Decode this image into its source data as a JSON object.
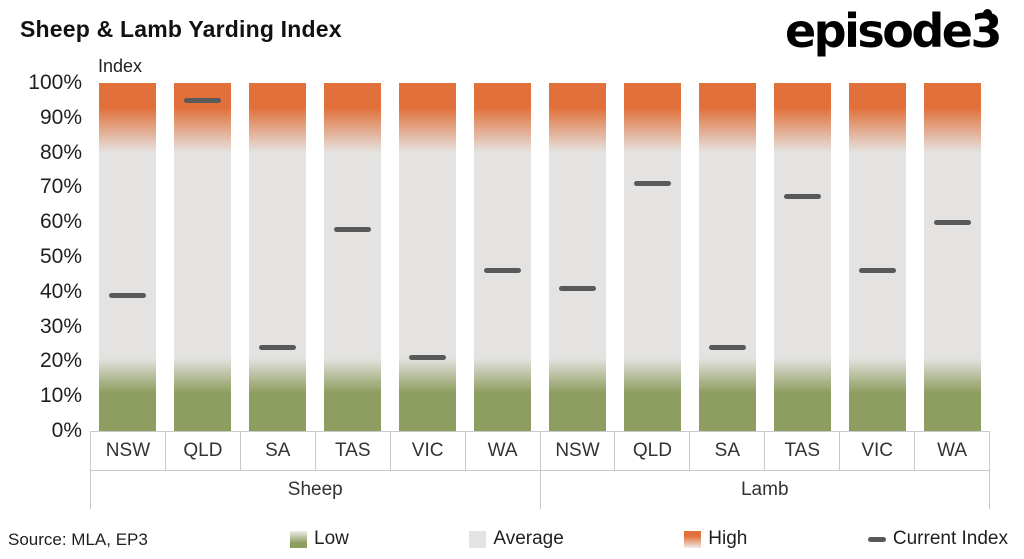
{
  "header": {
    "title": "Sheep & Lamb Yarding Index",
    "logo_text": "episode3"
  },
  "chart_data": {
    "type": "bar",
    "title": "Sheep & Lamb Yarding Index",
    "axis_label": "Index",
    "ylim": [
      0,
      100
    ],
    "y_ticks": [
      "100%",
      "90%",
      "80%",
      "70%",
      "60%",
      "50%",
      "40%",
      "30%",
      "20%",
      "10%",
      "0%"
    ],
    "grid": "off",
    "legend_position": "bottom",
    "zones": {
      "low": {
        "label": "Low",
        "from": 0,
        "to": 20,
        "color": "#8E9D60"
      },
      "average": {
        "label": "Average",
        "from": 20,
        "to": 80,
        "color": "#E4E3E1"
      },
      "high": {
        "label": "High",
        "from": 80,
        "to": 100,
        "color": "#E2703A"
      }
    },
    "marker_color": "#595959",
    "marker_series_name": "Current Index",
    "groups": [
      {
        "label": "Sheep",
        "categories": [
          "NSW",
          "QLD",
          "SA",
          "TAS",
          "VIC",
          "WA"
        ],
        "values": [
          39,
          95,
          24,
          58,
          21,
          46
        ]
      },
      {
        "label": "Lamb",
        "categories": [
          "NSW",
          "QLD",
          "SA",
          "TAS",
          "VIC",
          "WA"
        ],
        "values": [
          41,
          71,
          24,
          67.5,
          46,
          60
        ]
      }
    ],
    "legend": [
      {
        "label": "Low",
        "type": "gradient-green"
      },
      {
        "label": "Average",
        "type": "solid-grey"
      },
      {
        "label": "High",
        "type": "gradient-orange"
      },
      {
        "label": "Current Index",
        "type": "dash"
      }
    ]
  },
  "footer": {
    "source": "Source: MLA, EP3"
  }
}
